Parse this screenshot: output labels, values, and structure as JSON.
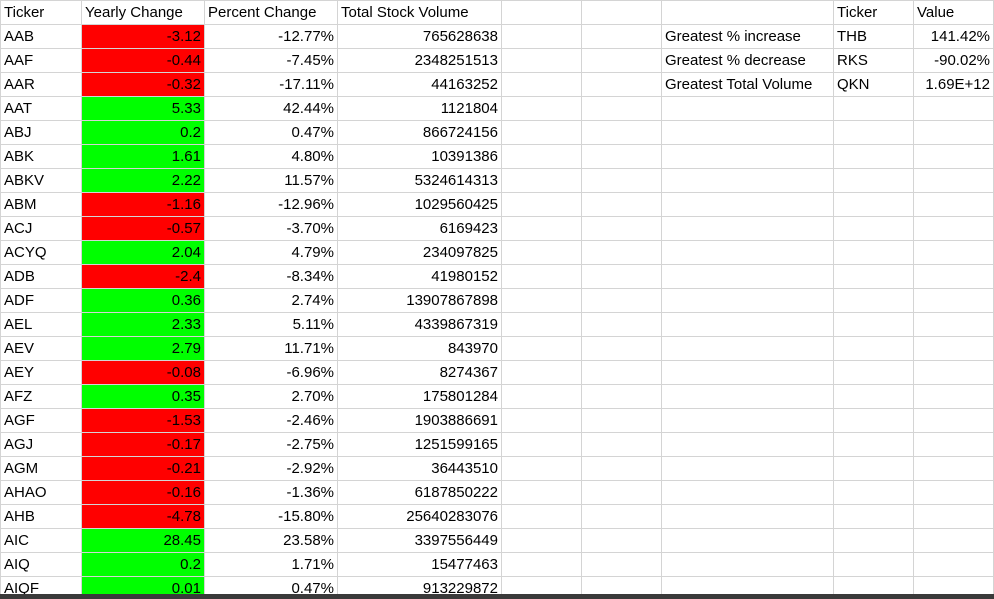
{
  "headers": {
    "ticker": "Ticker",
    "yearly_change": "Yearly Change",
    "percent_change": "Percent Change",
    "total_volume": "Total Stock Volume",
    "summary_ticker": "Ticker",
    "summary_value": "Value"
  },
  "colors": {
    "positive": "#00ff00",
    "negative": "#ff0000"
  },
  "rows": [
    {
      "ticker": "AAB",
      "change": "-3.12",
      "pct": "-12.77%",
      "vol": "765628638",
      "sign": "neg"
    },
    {
      "ticker": "AAF",
      "change": "-0.44",
      "pct": "-7.45%",
      "vol": "2348251513",
      "sign": "neg"
    },
    {
      "ticker": "AAR",
      "change": "-0.32",
      "pct": "-17.11%",
      "vol": "44163252",
      "sign": "neg"
    },
    {
      "ticker": "AAT",
      "change": "5.33",
      "pct": "42.44%",
      "vol": "1121804",
      "sign": "pos"
    },
    {
      "ticker": "ABJ",
      "change": "0.2",
      "pct": "0.47%",
      "vol": "866724156",
      "sign": "pos"
    },
    {
      "ticker": "ABK",
      "change": "1.61",
      "pct": "4.80%",
      "vol": "10391386",
      "sign": "pos"
    },
    {
      "ticker": "ABKV",
      "change": "2.22",
      "pct": "11.57%",
      "vol": "5324614313",
      "sign": "pos"
    },
    {
      "ticker": "ABM",
      "change": "-1.16",
      "pct": "-12.96%",
      "vol": "1029560425",
      "sign": "neg"
    },
    {
      "ticker": "ACJ",
      "change": "-0.57",
      "pct": "-3.70%",
      "vol": "6169423",
      "sign": "neg"
    },
    {
      "ticker": "ACYQ",
      "change": "2.04",
      "pct": "4.79%",
      "vol": "234097825",
      "sign": "pos"
    },
    {
      "ticker": "ADB",
      "change": "-2.4",
      "pct": "-8.34%",
      "vol": "41980152",
      "sign": "neg"
    },
    {
      "ticker": "ADF",
      "change": "0.36",
      "pct": "2.74%",
      "vol": "13907867898",
      "sign": "pos"
    },
    {
      "ticker": "AEL",
      "change": "2.33",
      "pct": "5.11%",
      "vol": "4339867319",
      "sign": "pos"
    },
    {
      "ticker": "AEV",
      "change": "2.79",
      "pct": "11.71%",
      "vol": "843970",
      "sign": "pos"
    },
    {
      "ticker": "AEY",
      "change": "-0.08",
      "pct": "-6.96%",
      "vol": "8274367",
      "sign": "neg"
    },
    {
      "ticker": "AFZ",
      "change": "0.35",
      "pct": "2.70%",
      "vol": "175801284",
      "sign": "pos"
    },
    {
      "ticker": "AGF",
      "change": "-1.53",
      "pct": "-2.46%",
      "vol": "1903886691",
      "sign": "neg"
    },
    {
      "ticker": "AGJ",
      "change": "-0.17",
      "pct": "-2.75%",
      "vol": "1251599165",
      "sign": "neg"
    },
    {
      "ticker": "AGM",
      "change": "-0.21",
      "pct": "-2.92%",
      "vol": "36443510",
      "sign": "neg"
    },
    {
      "ticker": "AHAO",
      "change": "-0.16",
      "pct": "-1.36%",
      "vol": "6187850222",
      "sign": "neg"
    },
    {
      "ticker": "AHB",
      "change": "-4.78",
      "pct": "-15.80%",
      "vol": "25640283076",
      "sign": "neg"
    },
    {
      "ticker": "AIC",
      "change": "28.45",
      "pct": "23.58%",
      "vol": "3397556449",
      "sign": "pos"
    },
    {
      "ticker": "AIQ",
      "change": "0.2",
      "pct": "1.71%",
      "vol": "15477463",
      "sign": "pos"
    },
    {
      "ticker": "AIQF",
      "change": "0.01",
      "pct": "0.47%",
      "vol": "913229872",
      "sign": "pos"
    }
  ],
  "summary": [
    {
      "label": "Greatest % increase",
      "ticker": "THB",
      "value": "141.42%"
    },
    {
      "label": "Greatest % decrease",
      "ticker": "RKS",
      "value": "-90.02%"
    },
    {
      "label": "Greatest Total Volume",
      "ticker": "QKN",
      "value": "1.69E+12"
    }
  ]
}
